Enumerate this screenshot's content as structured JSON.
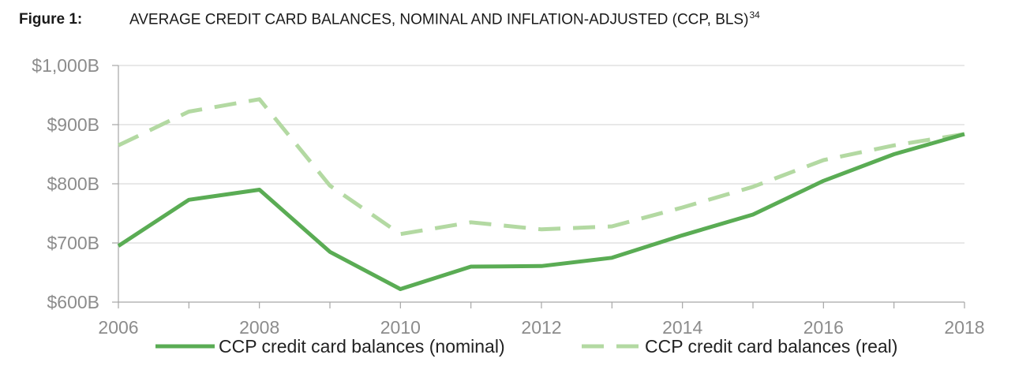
{
  "figure": {
    "label": "Figure 1:",
    "title": "AVERAGE CREDIT CARD BALANCES, NOMINAL AND INFLATION-ADJUSTED (CCP, BLS)",
    "footnote_ref": "34"
  },
  "chart_data": {
    "type": "line",
    "title": "AVERAGE CREDIT CARD BALANCES, NOMINAL AND INFLATION-ADJUSTED (CCP, BLS)",
    "xlabel": "",
    "ylabel": "",
    "x": [
      2006,
      2007,
      2008,
      2009,
      2010,
      2011,
      2012,
      2013,
      2014,
      2015,
      2016,
      2017,
      2018
    ],
    "x_tick_labels": [
      "2006",
      "2008",
      "2010",
      "2012",
      "2014",
      "2016",
      "2018"
    ],
    "x_tick_values": [
      2006,
      2008,
      2010,
      2012,
      2014,
      2016,
      2018
    ],
    "xlim": [
      2006,
      2018
    ],
    "ylim": [
      600,
      1000
    ],
    "y_tick_values": [
      600,
      700,
      800,
      900,
      1000
    ],
    "y_tick_labels": [
      "$600B",
      "$700B",
      "$800B",
      "$900B",
      "$1,000B"
    ],
    "grid": "horizontal",
    "legend_position": "bottom",
    "series": [
      {
        "name": "CCP credit card balances (nominal)",
        "style": "solid",
        "color": "#5aac54",
        "values": [
          695,
          773,
          790,
          685,
          622,
          660,
          661,
          675,
          713,
          748,
          805,
          850,
          884
        ]
      },
      {
        "name": "CCP credit card balances (real)",
        "style": "dashed",
        "color": "#b3d9a2",
        "values": [
          865,
          922,
          943,
          797,
          715,
          735,
          723,
          728,
          760,
          795,
          840,
          865,
          884
        ]
      }
    ]
  }
}
